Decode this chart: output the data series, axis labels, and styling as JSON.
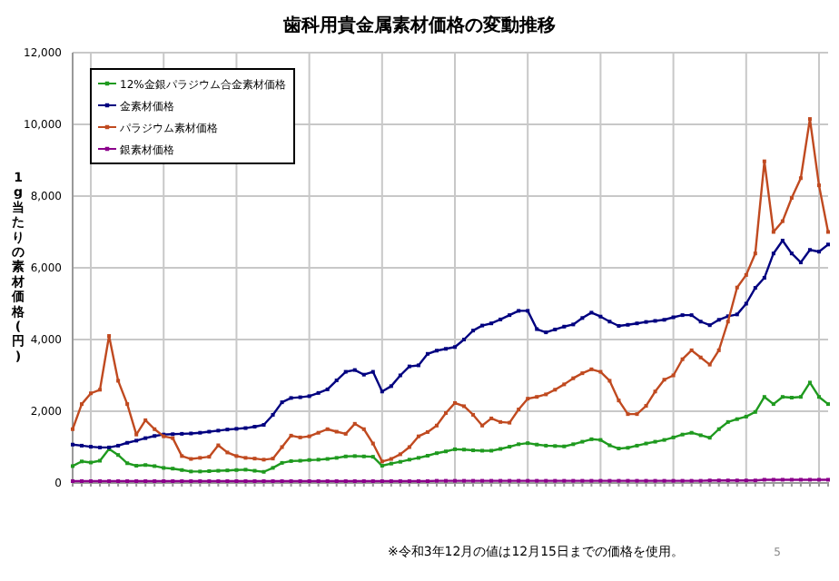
{
  "chart_data": {
    "type": "line",
    "title": "歯科用貴金属素材価格の変動推移",
    "ylabel": "1g当たりの素材価格(円)",
    "annotations": [
      "※令和3年12月の値は12月15日までの価格を使用。",
      "5"
    ],
    "categories": [
      null,
      null,
      null,
      null,
      null,
      null,
      null,
      null,
      null,
      null,
      null,
      null,
      null,
      null,
      null,
      null,
      null,
      null,
      null,
      null,
      null,
      null,
      null,
      null,
      null,
      null,
      null,
      null,
      null,
      null,
      null,
      null,
      null,
      null,
      null,
      null,
      null,
      null,
      null,
      null,
      null,
      null,
      null,
      null,
      null,
      null,
      null,
      null,
      null,
      null,
      null,
      null,
      null,
      null,
      null,
      null,
      null,
      null,
      null,
      null,
      null,
      null,
      null,
      null,
      null,
      null,
      null,
      null,
      null,
      null,
      null,
      null,
      null,
      null,
      null,
      null,
      null,
      null,
      null,
      null,
      null,
      null,
      null,
      null
    ],
    "ylim": [
      0,
      12000
    ],
    "yticks": [
      0,
      {
        "value": 2000,
        "label": "2,000"
      },
      {
        "value": 4000,
        "label": "4,000"
      },
      {
        "value": 6000,
        "label": "6,000"
      },
      {
        "value": 8000,
        "label": "8,000"
      },
      {
        "value": 10000,
        "label": "10,000"
      },
      {
        "value": 12000,
        "label": "12,000"
      }
    ],
    "grid": true,
    "legend": "top left",
    "marker": "square",
    "line_style": "solid",
    "tick_labels": "y",
    "series": [
      {
        "name": "12%金銀パラジウム合金素材価格",
        "color": "#1f9a1f",
        "values": [
          470,
          600,
          570,
          620,
          950,
          780,
          550,
          480,
          500,
          470,
          420,
          400,
          360,
          320,
          320,
          330,
          340,
          350,
          360,
          370,
          340,
          310,
          420,
          560,
          610,
          620,
          640,
          650,
          670,
          700,
          740,
          750,
          740,
          730,
          480,
          540,
          590,
          650,
          700,
          760,
          830,
          880,
          940,
          930,
          910,
          900,
          900,
          950,
          1010,
          1080,
          1110,
          1070,
          1040,
          1030,
          1020,
          1080,
          1150,
          1220,
          1200,
          1050,
          960,
          980,
          1040,
          1100,
          1150,
          1200,
          1270,
          1350,
          1400,
          1330,
          1260,
          1500,
          1700,
          1780,
          1850,
          1980,
          2400,
          2200,
          2400,
          2380,
          2400,
          2800,
          2400,
          2200
        ]
      },
      {
        "name": "金素材価格",
        "color": "#000080",
        "values": [
          1070,
          1040,
          1010,
          990,
          990,
          1040,
          1120,
          1180,
          1250,
          1310,
          1350,
          1360,
          1370,
          1380,
          1400,
          1430,
          1460,
          1490,
          1510,
          1530,
          1570,
          1620,
          1900,
          2250,
          2370,
          2390,
          2420,
          2510,
          2610,
          2860,
          3100,
          3150,
          3020,
          3100,
          2550,
          2700,
          3000,
          3250,
          3280,
          3600,
          3690,
          3740,
          3790,
          4000,
          4250,
          4390,
          4450,
          4560,
          4680,
          4800,
          4800,
          4290,
          4200,
          4280,
          4360,
          4420,
          4600,
          4750,
          4640,
          4500,
          4380,
          4410,
          4450,
          4490,
          4520,
          4550,
          4620,
          4680,
          4680,
          4500,
          4400,
          4550,
          4650,
          4700,
          5000,
          5440,
          5720,
          6400,
          6760,
          6400,
          6150,
          6500,
          6450,
          6650
        ]
      },
      {
        "name": "パラジウム素材価格",
        "color": "#c04a20",
        "values": [
          1500,
          2200,
          2500,
          2600,
          4100,
          2850,
          2200,
          1350,
          1750,
          1500,
          1300,
          1250,
          750,
          670,
          700,
          730,
          1050,
          850,
          750,
          700,
          680,
          650,
          680,
          1000,
          1320,
          1270,
          1300,
          1400,
          1500,
          1430,
          1370,
          1650,
          1500,
          1100,
          600,
          670,
          800,
          1000,
          1300,
          1420,
          1600,
          1950,
          2230,
          2140,
          1900,
          1600,
          1800,
          1700,
          1680,
          2050,
          2350,
          2400,
          2470,
          2600,
          2750,
          2920,
          3060,
          3170,
          3100,
          2850,
          2300,
          1920,
          1920,
          2150,
          2550,
          2880,
          3000,
          3450,
          3700,
          3500,
          3300,
          3700,
          4500,
          5450,
          5800,
          6400,
          8970,
          7000,
          7300,
          7950,
          8500,
          10150,
          8300,
          7000
        ]
      },
      {
        "name": "銀素材価格",
        "color": "#8b008b",
        "values": [
          50,
          50,
          50,
          50,
          50,
          50,
          50,
          50,
          50,
          50,
          50,
          50,
          50,
          50,
          50,
          50,
          50,
          50,
          50,
          50,
          50,
          50,
          50,
          50,
          50,
          50,
          50,
          50,
          50,
          50,
          50,
          50,
          50,
          50,
          50,
          50,
          50,
          50,
          50,
          50,
          60,
          60,
          60,
          60,
          60,
          60,
          60,
          60,
          60,
          60,
          60,
          60,
          60,
          60,
          60,
          60,
          60,
          60,
          60,
          60,
          60,
          60,
          60,
          60,
          60,
          60,
          60,
          60,
          60,
          60,
          70,
          70,
          70,
          70,
          70,
          70,
          90,
          90,
          90,
          90,
          90,
          90,
          90,
          90
        ]
      }
    ]
  }
}
